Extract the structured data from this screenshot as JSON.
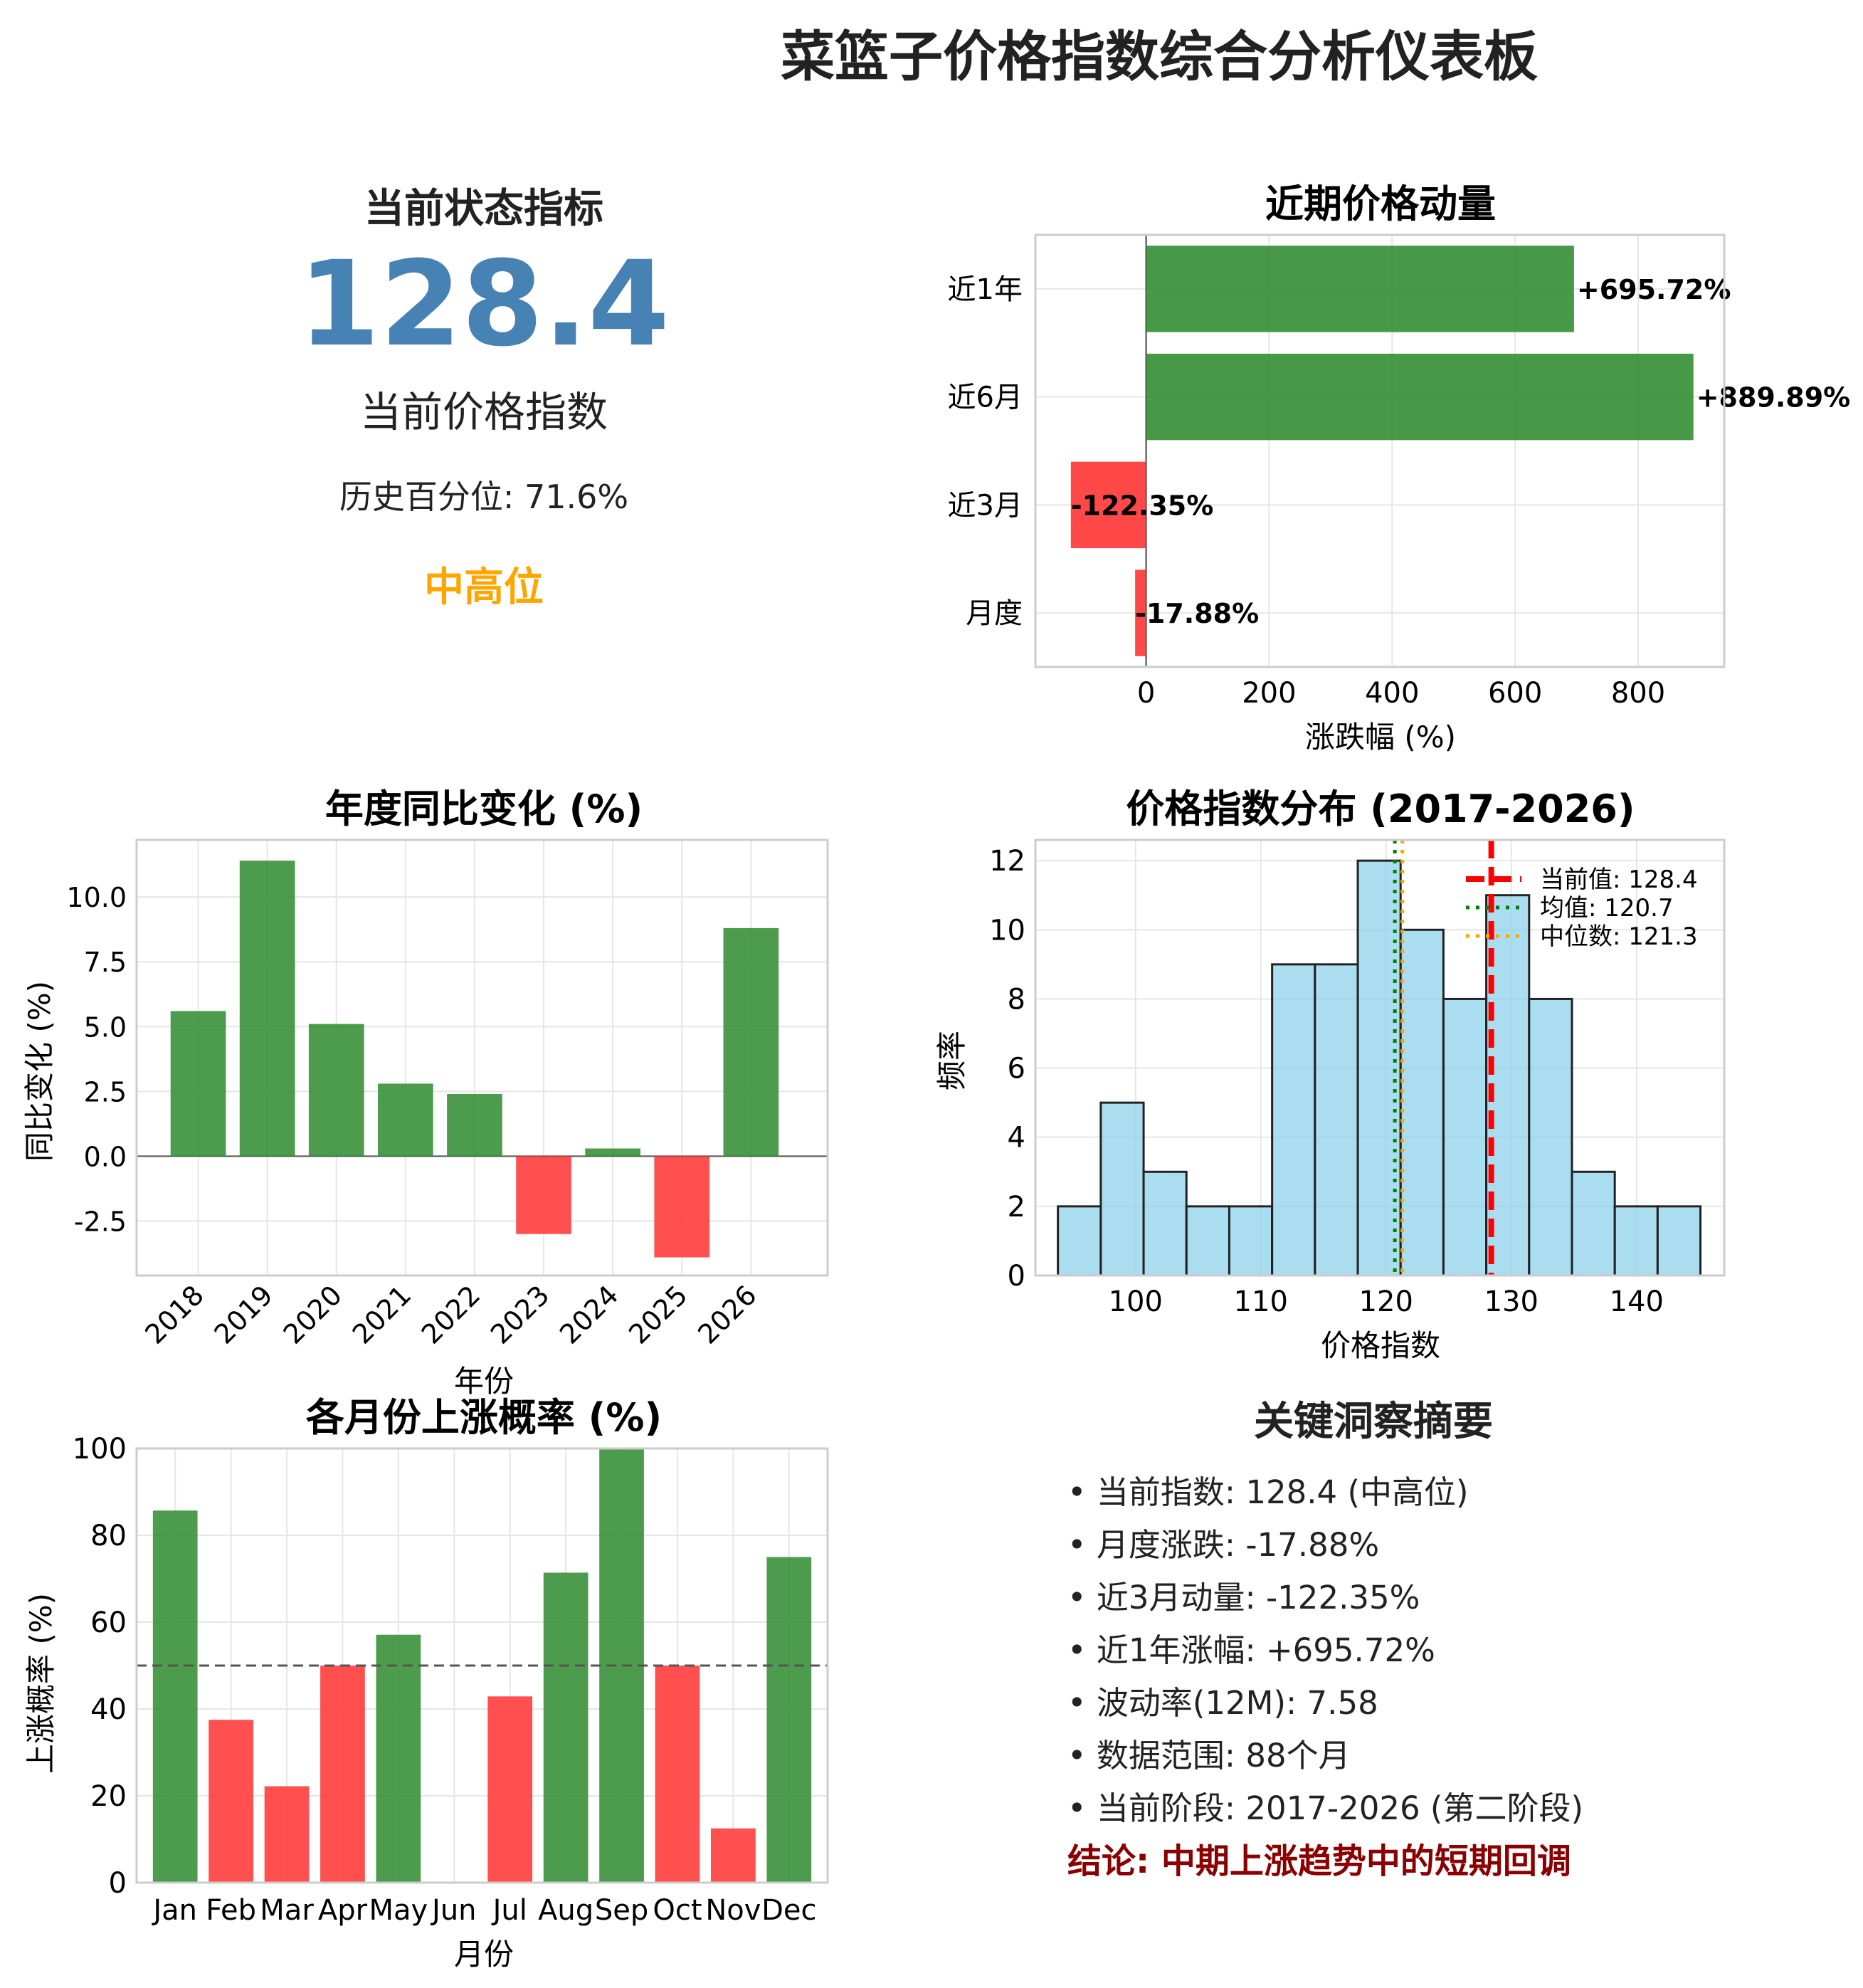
{
  "dashboard": {
    "title": "菜篮子价格指数综合分析仪表板"
  },
  "status_panel": {
    "title": "当前状态指标",
    "value": "128.4",
    "subtitle": "当前价格指数",
    "percentile_text": "历史百分位: 71.6%",
    "level": "中高位",
    "level_color": "#ffa500",
    "value_color": "#4682b4"
  },
  "summary": {
    "title": "关键洞察摘要",
    "lines": [
      "• 当前指数: 128.4 (中高位)",
      "• 月度涨跌: -17.88%",
      "• 近3月动量: -122.35%",
      "• 近1年涨幅: +695.72%",
      "• 波动率(12M): 7.58",
      "• 数据范围: 88个月",
      "• 当前阶段: 2017-2026 (第二阶段)"
    ],
    "conclusion": "结论: 中期上涨趋势中的短期回调"
  },
  "colors": {
    "up": "#2e8b2e",
    "down": "#ff3030",
    "hist": "#87ceeb",
    "current": "#ff0000",
    "mean": "#008000",
    "median": "#ffa500"
  },
  "chart_data": [
    {
      "id": "momentum",
      "type": "bar",
      "orientation": "horizontal",
      "title": "近期价格动量",
      "xlabel": "涨跌幅 (%)",
      "ylabel": "",
      "categories": [
        "近1年",
        "近6月",
        "近3月",
        "月度"
      ],
      "values": [
        695.72,
        889.89,
        -122.35,
        -17.88
      ],
      "value_labels": [
        "+695.72%",
        "+889.89%",
        "-122.35%",
        "-17.88%"
      ],
      "xlim": [
        -180,
        940
      ],
      "xticks": [
        0,
        200,
        400,
        600,
        800
      ],
      "grid": true
    },
    {
      "id": "yoy",
      "type": "bar",
      "title": "年度同比变化 (%)",
      "xlabel": "年份",
      "ylabel": "同比变化 (%)",
      "categories": [
        "2018",
        "2019",
        "2020",
        "2021",
        "2022",
        "2023",
        "2024",
        "2025",
        "2026"
      ],
      "values": [
        5.6,
        11.4,
        5.1,
        2.8,
        2.4,
        -3.0,
        0.3,
        -3.9,
        8.8
      ],
      "ylim": [
        -4.6,
        12.2
      ],
      "yticks": [
        -2.5,
        0.0,
        2.5,
        5.0,
        7.5,
        10.0
      ],
      "ytick_labels": [
        "-2.5",
        "0.0",
        "2.5",
        "5.0",
        "7.5",
        "10.0"
      ],
      "grid": true
    },
    {
      "id": "distribution",
      "type": "histogram",
      "title": "价格指数分布 (2017-2026)",
      "xlabel": "价格指数",
      "ylabel": "频率",
      "bin_start": 93.8,
      "bin_width": 3.42,
      "counts": [
        2,
        5,
        3,
        2,
        2,
        9,
        9,
        12,
        10,
        8,
        11,
        8,
        3,
        2,
        2
      ],
      "xlim": [
        92,
        147
      ],
      "ylim": [
        0,
        12.6
      ],
      "xticks": [
        100,
        110,
        120,
        130,
        140
      ],
      "yticks": [
        0,
        2,
        4,
        6,
        8,
        10,
        12
      ],
      "reference_lines": [
        {
          "name": "当前值: 128.4",
          "value": 128.4,
          "style": "dashed",
          "color": "#ff0000"
        },
        {
          "name": "均值: 120.7",
          "value": 120.7,
          "style": "dotted",
          "color": "#008000"
        },
        {
          "name": "中位数: 121.3",
          "value": 121.3,
          "style": "dotted",
          "color": "#ffa500"
        }
      ],
      "legend": "top-right",
      "grid": true
    },
    {
      "id": "monthly",
      "type": "bar",
      "title": "各月份上涨概率 (%)",
      "xlabel": "月份",
      "ylabel": "上涨概率 (%)",
      "categories": [
        "Jan",
        "Feb",
        "Mar",
        "Apr",
        "May",
        "Jun",
        "Jul",
        "Aug",
        "Sep",
        "Oct",
        "Nov",
        "Dec"
      ],
      "values": [
        85.7,
        37.5,
        22.2,
        50.0,
        57.1,
        0,
        42.9,
        71.4,
        100.0,
        50.0,
        12.5,
        75.0
      ],
      "threshold": 50,
      "ylim": [
        0,
        100
      ],
      "yticks": [
        0,
        20,
        40,
        60,
        80,
        100
      ],
      "grid": true
    }
  ]
}
